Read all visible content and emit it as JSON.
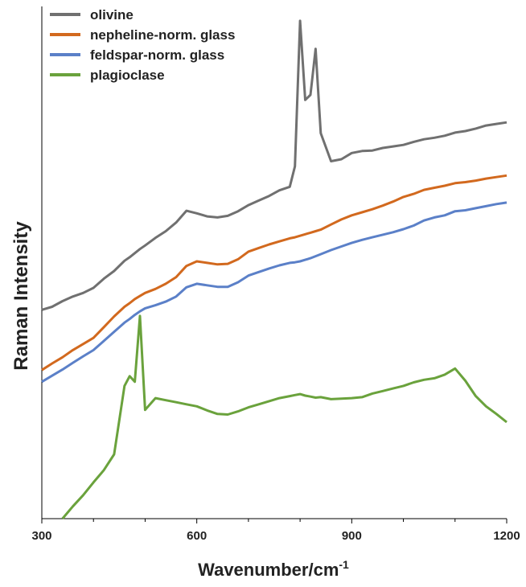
{
  "chart_data": {
    "type": "line",
    "x_label": "Wavenumber/cm",
    "x_label_sup": "-1",
    "y_label": "Raman Intensity",
    "x": [
      300,
      320,
      340,
      360,
      380,
      400,
      420,
      440,
      460,
      470,
      480,
      490,
      500,
      520,
      540,
      560,
      580,
      600,
      620,
      640,
      660,
      680,
      700,
      720,
      740,
      760,
      780,
      790,
      800,
      810,
      820,
      830,
      840,
      860,
      880,
      900,
      920,
      940,
      960,
      980,
      1000,
      1020,
      1040,
      1060,
      1080,
      1100,
      1120,
      1140,
      1160,
      1180,
      1200
    ],
    "series": [
      {
        "name": "olivine",
        "color": "#707070",
        "values": [
          40.9,
          41.5,
          42.6,
          43.5,
          44.2,
          45.2,
          47,
          48.5,
          50.5,
          51.2,
          52,
          52.8,
          53.5,
          55,
          56.3,
          58,
          60.3,
          59.8,
          59.2,
          59,
          59.3,
          60.2,
          61.4,
          62.3,
          63.2,
          64.3,
          65,
          69,
          97.5,
          82,
          83,
          92,
          75.5,
          70,
          70.4,
          71.6,
          72,
          72.1,
          72.6,
          72.9,
          73.2,
          73.8,
          74.3,
          74.6,
          75,
          75.6,
          75.9,
          76.4,
          77,
          77.3,
          77.6
        ]
      },
      {
        "name": "nepheline-norm. glass",
        "color": "#d2691e",
        "values": [
          29.1,
          30.4,
          31.6,
          33,
          34.2,
          35.4,
          37.5,
          39.6,
          41.5,
          42.2,
          43,
          43.6,
          44.2,
          45,
          46,
          47.3,
          49.5,
          50.4,
          50.1,
          49.8,
          49.9,
          50.8,
          52.3,
          53,
          53.7,
          54.3,
          54.9,
          55.1,
          55.4,
          55.7,
          56,
          56.3,
          56.6,
          57.6,
          58.6,
          59.4,
          60,
          60.6,
          61.3,
          62.1,
          63,
          63.6,
          64.4,
          64.8,
          65.2,
          65.7,
          65.9,
          66.2,
          66.6,
          66.9,
          67.2
        ]
      },
      {
        "name": "feldspar-norm. glass",
        "color": "#5b80c8",
        "values": [
          26.8,
          28,
          29.2,
          30.5,
          31.8,
          33,
          34.8,
          36.6,
          38.4,
          39.1,
          39.9,
          40.6,
          41.2,
          41.8,
          42.5,
          43.5,
          45.3,
          46,
          45.7,
          45.4,
          45.4,
          46.3,
          47.6,
          48.3,
          49,
          49.6,
          50.1,
          50.2,
          50.4,
          50.7,
          51,
          51.4,
          51.8,
          52.6,
          53.3,
          54,
          54.6,
          55.1,
          55.6,
          56.1,
          56.7,
          57.4,
          58.4,
          59,
          59.4,
          60.2,
          60.4,
          60.8,
          61.2,
          61.6,
          61.9
        ]
      },
      {
        "name": "plagioclase",
        "color": "#6aa23c",
        "values": [
          null,
          null,
          0,
          2.4,
          4.6,
          7.1,
          9.5,
          12.6,
          26,
          27.9,
          26.8,
          39.7,
          21.3,
          23.6,
          23.2,
          22.8,
          22.4,
          22,
          21.2,
          20.5,
          20.4,
          21,
          21.8,
          22.4,
          23,
          23.6,
          24,
          24.2,
          24.4,
          24.1,
          23.9,
          23.7,
          23.8,
          23.4,
          23.5,
          23.6,
          23.8,
          24.5,
          25,
          25.5,
          26,
          26.7,
          27.2,
          27.5,
          28.2,
          29.4,
          27,
          24,
          22,
          20.5,
          18.9
        ]
      }
    ],
    "xlim": [
      300,
      1200
    ],
    "xticks": [
      300,
      600,
      900,
      1200
    ],
    "xminorticks": [
      400,
      500,
      700,
      800,
      1000,
      1100
    ],
    "ylim": [
      0,
      100
    ],
    "legend": "top-left"
  }
}
